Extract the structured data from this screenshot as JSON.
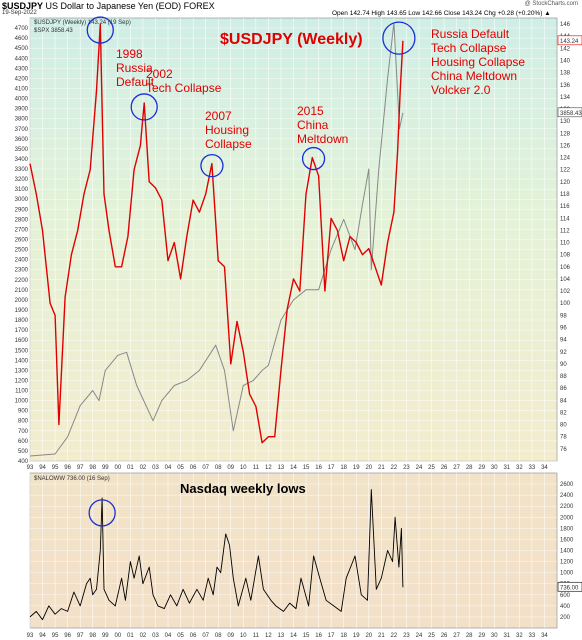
{
  "header": {
    "symbol": "$USDJPY",
    "description": "US Dollar to Japanese Yen (EOD) FOREX",
    "date": "19-Sep-2022",
    "watermark": "@ StockCharts.com",
    "open": "Open 142.74",
    "high": "High 143.65",
    "low": "Low 142.66",
    "close": "Close 143.24",
    "change": "Chg +0.28 (+0.20%) ▲"
  },
  "chart_data": [
    {
      "type": "line",
      "title": "$USDJPY (Weekly)",
      "legend": [
        "$USDJPY (Weekly) 143.24 (19 Sep)",
        "$SPX 3858.43"
      ],
      "left_axis": {
        "range": [
          400,
          4800
        ],
        "ticks": [
          400,
          500,
          600,
          700,
          800,
          900,
          1000,
          1100,
          1200,
          1300,
          1400,
          1500,
          1600,
          1700,
          1800,
          1900,
          2000,
          2100,
          2200,
          2300,
          2400,
          2500,
          2600,
          2700,
          2800,
          2900,
          3000,
          3100,
          3200,
          3300,
          3400,
          3500,
          3600,
          3700,
          3800,
          3900,
          4000,
          4100,
          4200,
          4300,
          4400,
          4500,
          4600,
          4700
        ]
      },
      "right_axis": {
        "range": [
          74,
          147
        ],
        "ticks": [
          76,
          78,
          80,
          82,
          84,
          86,
          88,
          90,
          92,
          94,
          96,
          98,
          100,
          102,
          104,
          106,
          108,
          110,
          112,
          114,
          116,
          118,
          120,
          122,
          124,
          126,
          128,
          130,
          132,
          134,
          136,
          138,
          140,
          142,
          144,
          146
        ]
      },
      "x_ticks": [
        "93",
        "94",
        "95",
        "96",
        "97",
        "98",
        "99",
        "00",
        "01",
        "02",
        "03",
        "04",
        "05",
        "06",
        "07",
        "08",
        "09",
        "10",
        "11",
        "12",
        "13",
        "14",
        "15",
        "16",
        "17",
        "18",
        "19",
        "20",
        "21",
        "22",
        "23",
        "24",
        "25",
        "26",
        "27",
        "28",
        "29",
        "30",
        "31",
        "32",
        "33",
        "34"
      ],
      "x_range": [
        1993,
        2035
      ],
      "last_labels": {
        "usdjpy": "143.24",
        "spx": "3858.43"
      },
      "series": [
        {
          "name": "$USDJPY",
          "color": "#e00000",
          "x": [
            1993.0,
            1993.5,
            1994.0,
            1994.6,
            1995.0,
            1995.3,
            1995.8,
            1996.3,
            1996.8,
            1997.3,
            1997.8,
            1998.3,
            1998.6,
            1998.9,
            1999.3,
            1999.8,
            2000.3,
            2000.8,
            2001.3,
            2001.8,
            2002.1,
            2002.5,
            2003.0,
            2003.5,
            2004.0,
            2004.5,
            2005.0,
            2005.5,
            2006.0,
            2006.5,
            2007.0,
            2007.5,
            2008.0,
            2008.5,
            2009.0,
            2009.5,
            2010.0,
            2010.5,
            2011.0,
            2011.5,
            2012.0,
            2012.5,
            2013.0,
            2013.5,
            2014.0,
            2014.5,
            2015.0,
            2015.5,
            2016.0,
            2016.5,
            2017.0,
            2017.5,
            2018.0,
            2018.5,
            2019.0,
            2019.5,
            2020.0,
            2020.5,
            2021.0,
            2021.5,
            2022.0,
            2022.3,
            2022.5,
            2022.72
          ],
          "y": [
            123,
            118,
            112,
            100,
            98,
            80,
            101,
            108,
            112,
            118,
            122,
            135,
            146,
            118,
            112,
            106,
            106,
            111,
            122,
            126,
            133,
            120,
            119,
            117,
            107,
            110,
            104,
            111,
            117,
            115,
            118,
            123,
            107,
            106,
            90,
            97,
            92,
            85,
            83,
            77,
            78,
            78,
            89,
            99,
            104,
            102,
            118,
            124,
            121,
            102,
            114,
            112,
            107,
            111,
            110,
            108,
            109,
            106,
            103,
            110,
            115,
            125,
            135,
            143.24
          ]
        },
        {
          "name": "$SPX",
          "color": "#888888",
          "x": [
            1993.0,
            1994.0,
            1995.0,
            1996.0,
            1997.0,
            1998.0,
            1998.5,
            1999.0,
            2000.0,
            2000.7,
            2001.5,
            2002.8,
            2003.5,
            2004.5,
            2005.5,
            2006.5,
            2007.8,
            2008.5,
            2009.2,
            2010.0,
            2010.8,
            2011.5,
            2012.0,
            2013.0,
            2014.0,
            2015.0,
            2016.0,
            2017.0,
            2018.0,
            2018.9,
            2019.5,
            2020.0,
            2020.2,
            2020.8,
            2021.5,
            2022.0,
            2022.45,
            2022.72
          ],
          "y": [
            450,
            460,
            470,
            640,
            950,
            1100,
            1000,
            1300,
            1450,
            1480,
            1150,
            800,
            1000,
            1150,
            1200,
            1300,
            1550,
            1300,
            700,
            1150,
            1200,
            1300,
            1350,
            1800,
            2000,
            2100,
            2100,
            2500,
            2800,
            2500,
            2950,
            3300,
            2300,
            3300,
            4200,
            4750,
            3700,
            3858.43
          ]
        }
      ],
      "annotations": [
        {
          "label": "1998\nRussia\nDefault",
          "x": 1998.5
        },
        {
          "label": "2002\nTech Collapse",
          "x": 2002.1
        },
        {
          "label": "2007\nHousing\nCollapse",
          "x": 2007.5
        },
        {
          "label": "2015\nChina\nMeltdown",
          "x": 2015.6
        },
        {
          "label": "Russia Default\nTech Collapse\nHousing Collapse\nChina Meltdown\nVolcker 2.0",
          "x": 2022.3
        }
      ]
    },
    {
      "type": "line",
      "title": "Nasdaq weekly lows",
      "legend": [
        "$NALOWW 736.00 (16 Sep)"
      ],
      "y_range": [
        0,
        2800
      ],
      "y_ticks": [
        200,
        400,
        600,
        800,
        1000,
        1200,
        1400,
        1600,
        1800,
        2000,
        2200,
        2400,
        2600
      ],
      "x_ticks": [
        "93",
        "94",
        "95",
        "96",
        "97",
        "98",
        "99",
        "00",
        "01",
        "02",
        "03",
        "04",
        "05",
        "06",
        "07",
        "08",
        "09",
        "10",
        "11",
        "12",
        "13",
        "14",
        "15",
        "16",
        "17",
        "18",
        "19",
        "20",
        "21",
        "22",
        "23",
        "24",
        "25",
        "26",
        "27",
        "28",
        "29",
        "30",
        "31",
        "32",
        "33",
        "34"
      ],
      "last_label": "736.00",
      "series": [
        {
          "name": "$NALOWW",
          "color": "#000000",
          "x": [
            1993.0,
            1993.5,
            1994.0,
            1994.5,
            1995.0,
            1995.5,
            1996.0,
            1996.5,
            1997.0,
            1997.5,
            1997.8,
            1998.0,
            1998.3,
            1998.6,
            1998.75,
            1998.9,
            1999.3,
            1999.8,
            2000.3,
            2000.6,
            2001.0,
            2001.3,
            2001.7,
            2002.0,
            2002.5,
            2002.8,
            2003.2,
            2003.7,
            2004.2,
            2004.7,
            2005.2,
            2005.7,
            2006.3,
            2006.8,
            2007.2,
            2007.6,
            2007.9,
            2008.2,
            2008.6,
            2008.9,
            2009.2,
            2009.6,
            2010.2,
            2010.6,
            2011.2,
            2011.6,
            2012.2,
            2012.6,
            2013.2,
            2013.7,
            2014.2,
            2014.6,
            2015.2,
            2015.6,
            2016.1,
            2016.6,
            2017.2,
            2017.8,
            2018.2,
            2018.9,
            2019.4,
            2019.9,
            2020.2,
            2020.6,
            2021.0,
            2021.5,
            2021.9,
            2022.1,
            2022.4,
            2022.6,
            2022.72
          ],
          "y": [
            200,
            300,
            150,
            400,
            250,
            350,
            300,
            650,
            400,
            800,
            900,
            600,
            700,
            1400,
            2350,
            700,
            500,
            400,
            900,
            500,
            1200,
            900,
            1300,
            800,
            1100,
            600,
            400,
            350,
            600,
            400,
            700,
            450,
            700,
            500,
            900,
            600,
            1100,
            1000,
            1700,
            1500,
            900,
            400,
            900,
            500,
            1300,
            700,
            500,
            400,
            300,
            450,
            350,
            900,
            400,
            1300,
            900,
            500,
            400,
            300,
            900,
            1300,
            600,
            500,
            2500,
            700,
            900,
            1400,
            1200,
            2000,
            1100,
            1800,
            736
          ]
        }
      ]
    }
  ]
}
